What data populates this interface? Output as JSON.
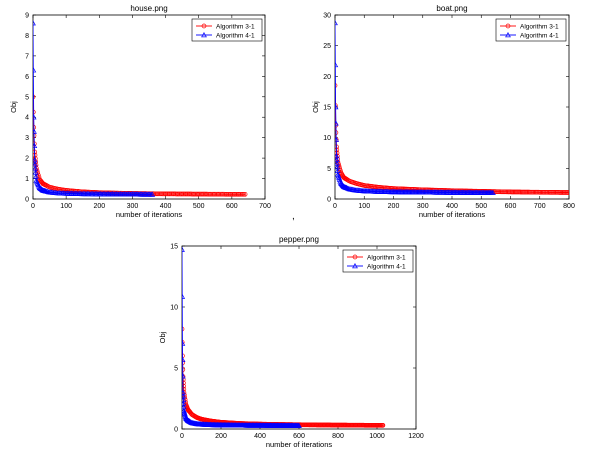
{
  "separator": ",",
  "chart_data": [
    {
      "type": "line",
      "title": "house.png",
      "xlabel": "number of iterations",
      "ylabel": "Obj",
      "xlim": [
        0,
        700
      ],
      "ylim": [
        0,
        9
      ],
      "xticks": [
        0,
        100,
        200,
        300,
        400,
        500,
        600,
        700
      ],
      "yticks": [
        0,
        1,
        2,
        3,
        4,
        5,
        6,
        7,
        8,
        9
      ],
      "grid": false,
      "legend": "top-right",
      "series": [
        {
          "name": "Algorithm 3-1",
          "color": "#ff0000",
          "marker": "circle",
          "x": [
            0,
            2,
            5,
            10,
            20,
            30,
            50,
            75,
            100,
            150,
            200,
            250,
            300,
            400,
            500,
            600,
            640
          ],
          "y": [
            5.0,
            3.5,
            2.3,
            1.5,
            0.95,
            0.75,
            0.58,
            0.48,
            0.42,
            0.35,
            0.31,
            0.29,
            0.27,
            0.25,
            0.24,
            0.23,
            0.23
          ]
        },
        {
          "name": "Algorithm 4-1",
          "color": "#0000ff",
          "marker": "triangle",
          "x": [
            0,
            2,
            5,
            10,
            20,
            30,
            50,
            75,
            100,
            150,
            200,
            250,
            300,
            360
          ],
          "y": [
            8.6,
            4.0,
            1.9,
            0.9,
            0.55,
            0.42,
            0.33,
            0.29,
            0.27,
            0.25,
            0.24,
            0.23,
            0.23,
            0.22
          ]
        }
      ]
    },
    {
      "type": "line",
      "title": "boat.png",
      "xlabel": "number of iterations",
      "ylabel": "Obj",
      "xlim": [
        0,
        800
      ],
      "ylim": [
        0,
        30
      ],
      "xticks": [
        0,
        100,
        200,
        300,
        400,
        500,
        600,
        700,
        800
      ],
      "yticks": [
        0,
        5,
        10,
        15,
        20,
        25,
        30
      ],
      "grid": false,
      "legend": "top-right",
      "series": [
        {
          "name": "Algorithm 3-1",
          "color": "#ff0000",
          "marker": "circle",
          "x": [
            0,
            2,
            5,
            10,
            20,
            30,
            50,
            75,
            100,
            150,
            200,
            300,
            400,
            500,
            600,
            700,
            800
          ],
          "y": [
            18.5,
            12.0,
            8.5,
            6.0,
            4.3,
            3.5,
            2.9,
            2.5,
            2.2,
            1.9,
            1.7,
            1.5,
            1.35,
            1.25,
            1.15,
            1.1,
            1.05
          ]
        },
        {
          "name": "Algorithm 4-1",
          "color": "#0000ff",
          "marker": "triangle",
          "x": [
            0,
            2,
            5,
            10,
            20,
            30,
            50,
            75,
            100,
            150,
            200,
            300,
            400,
            540
          ],
          "y": [
            28.7,
            15.0,
            7.0,
            4.0,
            2.6,
            2.0,
            1.6,
            1.4,
            1.3,
            1.2,
            1.15,
            1.1,
            1.05,
            1.0
          ]
        }
      ]
    },
    {
      "type": "line",
      "title": "pepper.png",
      "xlabel": "number of iterations",
      "ylabel": "Obj",
      "xlim": [
        0,
        1200
      ],
      "ylim": [
        0,
        15
      ],
      "xticks": [
        0,
        200,
        400,
        600,
        800,
        1000,
        1200
      ],
      "yticks": [
        0,
        5,
        10,
        15
      ],
      "grid": false,
      "legend": "top-right",
      "series": [
        {
          "name": "Algorithm 3-1",
          "color": "#ff0000",
          "marker": "circle",
          "x": [
            0,
            2,
            5,
            10,
            20,
            30,
            50,
            75,
            100,
            150,
            200,
            300,
            400,
            500,
            600,
            700,
            800,
            900,
            1030
          ],
          "y": [
            8.2,
            6.0,
            4.3,
            3.0,
            2.0,
            1.6,
            1.2,
            0.95,
            0.8,
            0.65,
            0.55,
            0.45,
            0.4,
            0.37,
            0.35,
            0.33,
            0.32,
            0.31,
            0.3
          ]
        },
        {
          "name": "Algorithm 4-1",
          "color": "#0000ff",
          "marker": "triangle",
          "x": [
            0,
            2,
            5,
            10,
            20,
            30,
            50,
            75,
            100,
            150,
            200,
            300,
            400,
            500,
            600
          ],
          "y": [
            14.7,
            7.0,
            3.0,
            1.5,
            0.9,
            0.7,
            0.5,
            0.42,
            0.38,
            0.34,
            0.32,
            0.3,
            0.29,
            0.28,
            0.27
          ]
        }
      ]
    }
  ]
}
